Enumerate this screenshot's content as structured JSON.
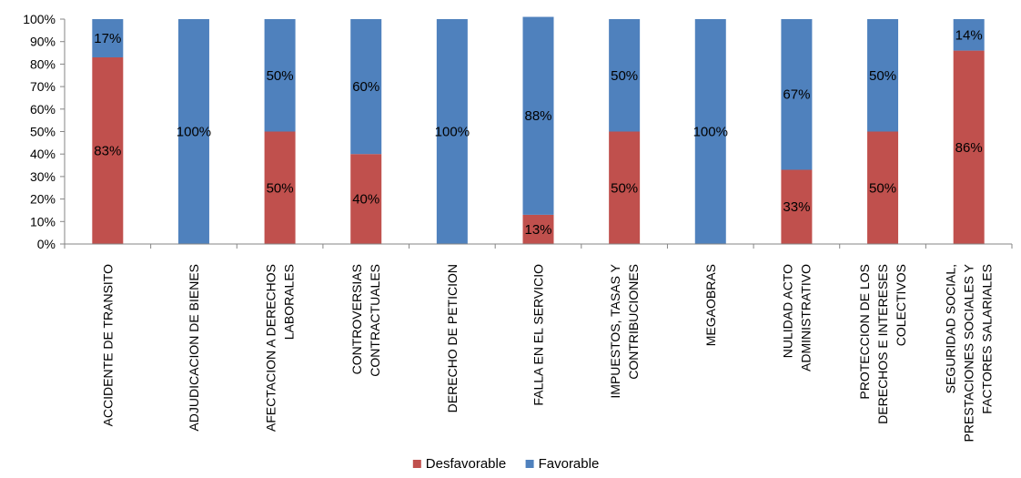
{
  "chart_data": {
    "type": "bar",
    "stacked": true,
    "percent": true,
    "categories": [
      [
        "ACCIDENTE DE TRANSITO"
      ],
      [
        "ADJUDICACION DE BIENES"
      ],
      [
        "AFECTACION A DERECHOS",
        "LABORALES"
      ],
      [
        "CONTROVERSIAS",
        "CONTRACTUALES"
      ],
      [
        "DERECHO DE PETICION"
      ],
      [
        "FALLA EN EL SERVICIO"
      ],
      [
        "IMPUESTOS, TASAS Y",
        "CONTRIBUCIONES"
      ],
      [
        "MEGAOBRAS"
      ],
      [
        "NULIDAD ACTO",
        "ADMINISTRATIVO"
      ],
      [
        "PROTECCION DE LOS",
        "DERECHOS E INTERESES",
        "COLECTIVOS"
      ],
      [
        "SEGURIDAD SOCIAL,",
        "PRESTACIONES SOCIALES Y",
        "FACTORES SALARIALES"
      ]
    ],
    "series": [
      {
        "name": "Desfavorable",
        "color": "#c0504d",
        "values": [
          83,
          0,
          50,
          40,
          0,
          13,
          50,
          0,
          33,
          50,
          86
        ],
        "labels": [
          "83%",
          "",
          "50%",
          "40%",
          "",
          "13%",
          "50%",
          "",
          "33%",
          "50%",
          "86%"
        ]
      },
      {
        "name": "Favorable",
        "color": "#4f81bd",
        "values": [
          17,
          100,
          50,
          60,
          100,
          88,
          50,
          100,
          67,
          50,
          14
        ],
        "labels": [
          "17%",
          "100%",
          "50%",
          "60%",
          "100%",
          "88%",
          "50%",
          "100%",
          "67%",
          "50%",
          "14%"
        ]
      }
    ],
    "y_ticks": [
      "0%",
      "10%",
      "20%",
      "30%",
      "40%",
      "50%",
      "60%",
      "70%",
      "80%",
      "90%",
      "100%"
    ],
    "ylim": [
      0,
      100
    ],
    "grid": false,
    "legend_position": "bottom"
  }
}
